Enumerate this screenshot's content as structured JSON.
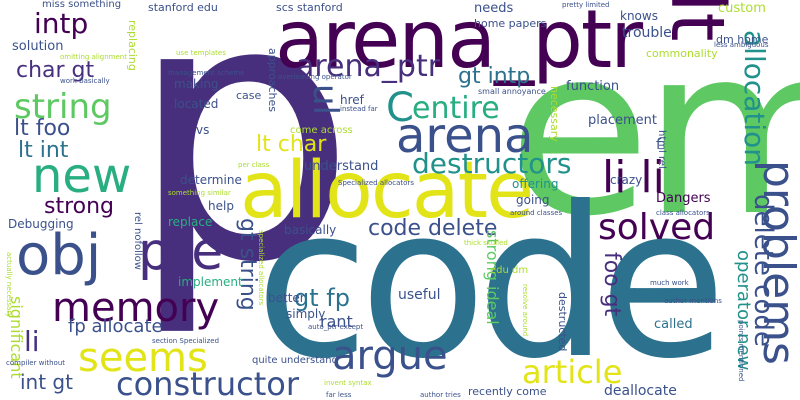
{
  "colors": {
    "purple": "#440154",
    "indigo": "#472f7d",
    "blue": "#3b518b",
    "slate": "#2c728e",
    "teal": "#21918c",
    "green": "#28ae80",
    "lime": "#5ec962",
    "yellowgreen": "#addc30",
    "yellow": "#e2e418"
  },
  "words": [
    {
      "text": "p"
    },
    {
      "text": "em"
    },
    {
      "text": "code"
    },
    {
      "text": "arena_ptr"
    },
    {
      "text": "lt"
    },
    {
      "text": "allocate"
    },
    {
      "text": "obj"
    },
    {
      "text": "pre"
    },
    {
      "text": "new"
    },
    {
      "text": "memory"
    },
    {
      "text": "arena"
    },
    {
      "text": "li li"
    },
    {
      "text": "problems"
    },
    {
      "text": "seems"
    },
    {
      "text": "argue"
    },
    {
      "text": "constructor"
    },
    {
      "text": "solved"
    },
    {
      "text": "article"
    },
    {
      "text": "string"
    },
    {
      "text": "intp"
    },
    {
      "text": "arena_ptr"
    },
    {
      "text": "entire"
    },
    {
      "text": "C"
    },
    {
      "text": "ul"
    },
    {
      "text": "code delete"
    },
    {
      "text": "destructors"
    },
    {
      "text": "allocation"
    },
    {
      "text": "delete code"
    },
    {
      "text": "lt foo"
    },
    {
      "text": "lt int"
    },
    {
      "text": "char gt"
    },
    {
      "text": "strong"
    },
    {
      "text": "gt intp"
    },
    {
      "text": "lt char"
    },
    {
      "text": "gt fp"
    },
    {
      "text": "gt string"
    },
    {
      "text": "foo gt"
    },
    {
      "text": "li"
    },
    {
      "text": "fp allocate"
    },
    {
      "text": "int gt"
    },
    {
      "text": "operator new"
    },
    {
      "text": "strong ideal"
    },
    {
      "text": "significant"
    },
    {
      "text": "rant"
    },
    {
      "text": "deallocate"
    },
    {
      "text": "called"
    },
    {
      "text": "useful"
    },
    {
      "text": "understand"
    },
    {
      "text": "placement"
    },
    {
      "text": "Dangers"
    },
    {
      "text": "function"
    },
    {
      "text": "trouble"
    },
    {
      "text": "solution"
    },
    {
      "text": "needs"
    },
    {
      "text": "knows"
    },
    {
      "text": "custom"
    },
    {
      "text": "making"
    },
    {
      "text": "located"
    },
    {
      "text": "determine"
    },
    {
      "text": "help"
    },
    {
      "text": "replace"
    },
    {
      "text": "Debugging"
    },
    {
      "text": "basically"
    },
    {
      "text": "implement"
    },
    {
      "text": "better"
    },
    {
      "text": "simply"
    },
    {
      "text": "offering"
    },
    {
      "text": "going"
    },
    {
      "text": "crazy"
    },
    {
      "text": "vs"
    },
    {
      "text": "href"
    },
    {
      "text": "f"
    },
    {
      "text": "case"
    },
    {
      "text": "home papers"
    },
    {
      "text": "dm home"
    },
    {
      "text": "commonality"
    },
    {
      "text": "stanford edu"
    },
    {
      "text": "scs stanford"
    },
    {
      "text": "miss something"
    },
    {
      "text": "replacing"
    },
    {
      "text": "approaches"
    },
    {
      "text": "necessary"
    },
    {
      "text": "destructed"
    },
    {
      "text": "come across"
    },
    {
      "text": "recently come"
    },
    {
      "text": "edu dm"
    },
    {
      "text": "quite understand"
    },
    {
      "text": "rel nofollow"
    },
    {
      "text": "html rel"
    },
    {
      "text": "instead far"
    },
    {
      "text": "small annoyance"
    },
    {
      "text": "pretty limited"
    },
    {
      "text": "less ambiguous"
    },
    {
      "text": "use templates"
    },
    {
      "text": "omitting alignment"
    },
    {
      "text": "work basically"
    },
    {
      "text": "management scheme"
    },
    {
      "text": "overloading operator"
    },
    {
      "text": "per class"
    },
    {
      "text": "something similar"
    },
    {
      "text": "Specialized allocators"
    },
    {
      "text": "around classes"
    },
    {
      "text": "class allocators"
    },
    {
      "text": "thick skulled"
    },
    {
      "text": "much work"
    },
    {
      "text": "author mentions"
    },
    {
      "text": "points mentioned"
    },
    {
      "text": "auto_ptr except"
    },
    {
      "text": "section Specialized"
    },
    {
      "text": "compiler without"
    },
    {
      "text": "actually necessary"
    },
    {
      "text": "invent syntax"
    },
    {
      "text": "far less"
    },
    {
      "text": "author tries"
    },
    {
      "text": "resolve around"
    },
    {
      "text": "specialized allocators"
    },
    {
      "text": "entire"
    }
  ]
}
